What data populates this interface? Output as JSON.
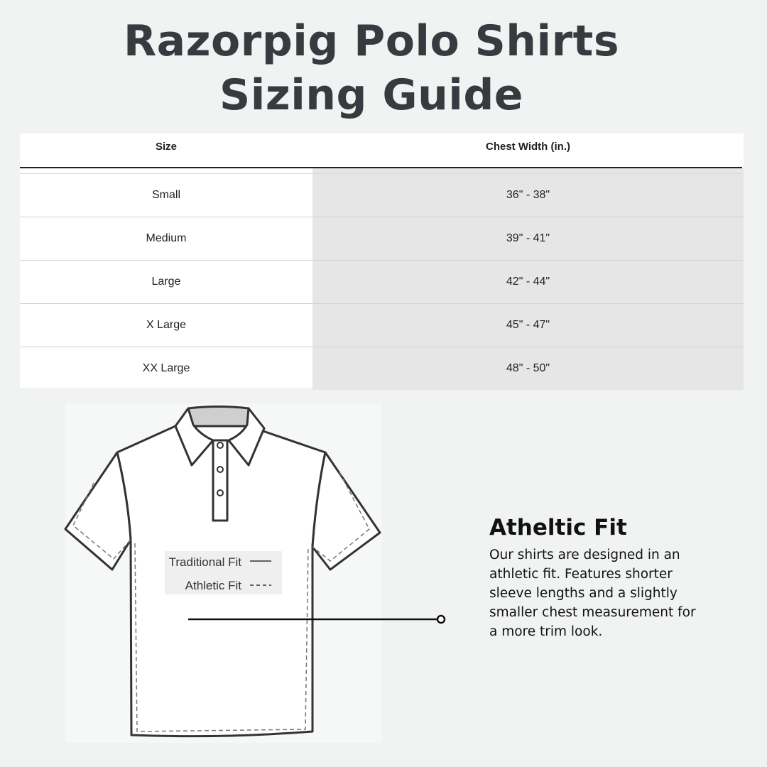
{
  "title": {
    "line1": "Razorpig Polo Shirts",
    "line2": "Sizing Guide"
  },
  "table": {
    "headers": [
      "Size",
      "Chest Width (in.)"
    ],
    "rows": [
      {
        "size": "Small",
        "chest": "36\" - 38\""
      },
      {
        "size": "Medium",
        "chest": "39\" - 41\""
      },
      {
        "size": "Large",
        "chest": "42\" - 44\""
      },
      {
        "size": "X Large",
        "chest": "45\" - 47\""
      },
      {
        "size": "XX Large",
        "chest": "48\" - 50\""
      }
    ]
  },
  "diagram": {
    "legend": {
      "traditional": "Traditional Fit",
      "athletic": "Athletic Fit"
    }
  },
  "fit": {
    "heading": "Atheltic Fit",
    "body": "Our shirts are designed in an athletic fit. Features shorter sleeve lengths and a slightly smaller chest measurement for a more trim look."
  },
  "colors": {
    "background": "#f1f3f2",
    "title": "#383a40",
    "column_shade": "#e6e6e6"
  }
}
